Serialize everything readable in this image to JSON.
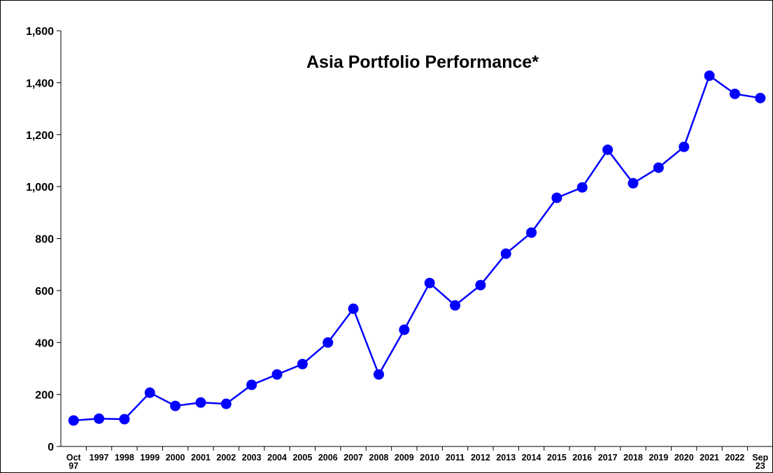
{
  "chart_data": {
    "type": "line",
    "title": "Asia Portfolio Performance*",
    "categories": [
      "Oct 97",
      "1997",
      "1998",
      "1999",
      "2000",
      "2001",
      "2002",
      "2003",
      "2004",
      "2005",
      "2006",
      "2007",
      "2008",
      "2009",
      "2010",
      "2011",
      "2012",
      "2013",
      "2014",
      "2015",
      "2016",
      "2017",
      "2018",
      "2019",
      "2020",
      "2021",
      "2022",
      "Sep 23"
    ],
    "values": [
      100,
      107,
      105,
      207,
      156,
      169,
      164,
      237,
      277,
      317,
      400,
      530,
      277,
      449,
      629,
      543,
      621,
      742,
      823,
      957,
      997,
      1142,
      1013,
      1073,
      1153,
      1427,
      1357,
      1341
    ],
    "color": "#0000ff",
    "ylim": [
      0,
      1600
    ],
    "yticks": [
      0,
      200,
      400,
      600,
      800,
      {
        "value": 1000,
        "label": "1,000"
      },
      {
        "value": 1200,
        "label": "1,200"
      },
      {
        "value": 1400,
        "label": "1,400"
      },
      {
        "value": 1600,
        "label": "1,600"
      }
    ],
    "grid": false
  }
}
